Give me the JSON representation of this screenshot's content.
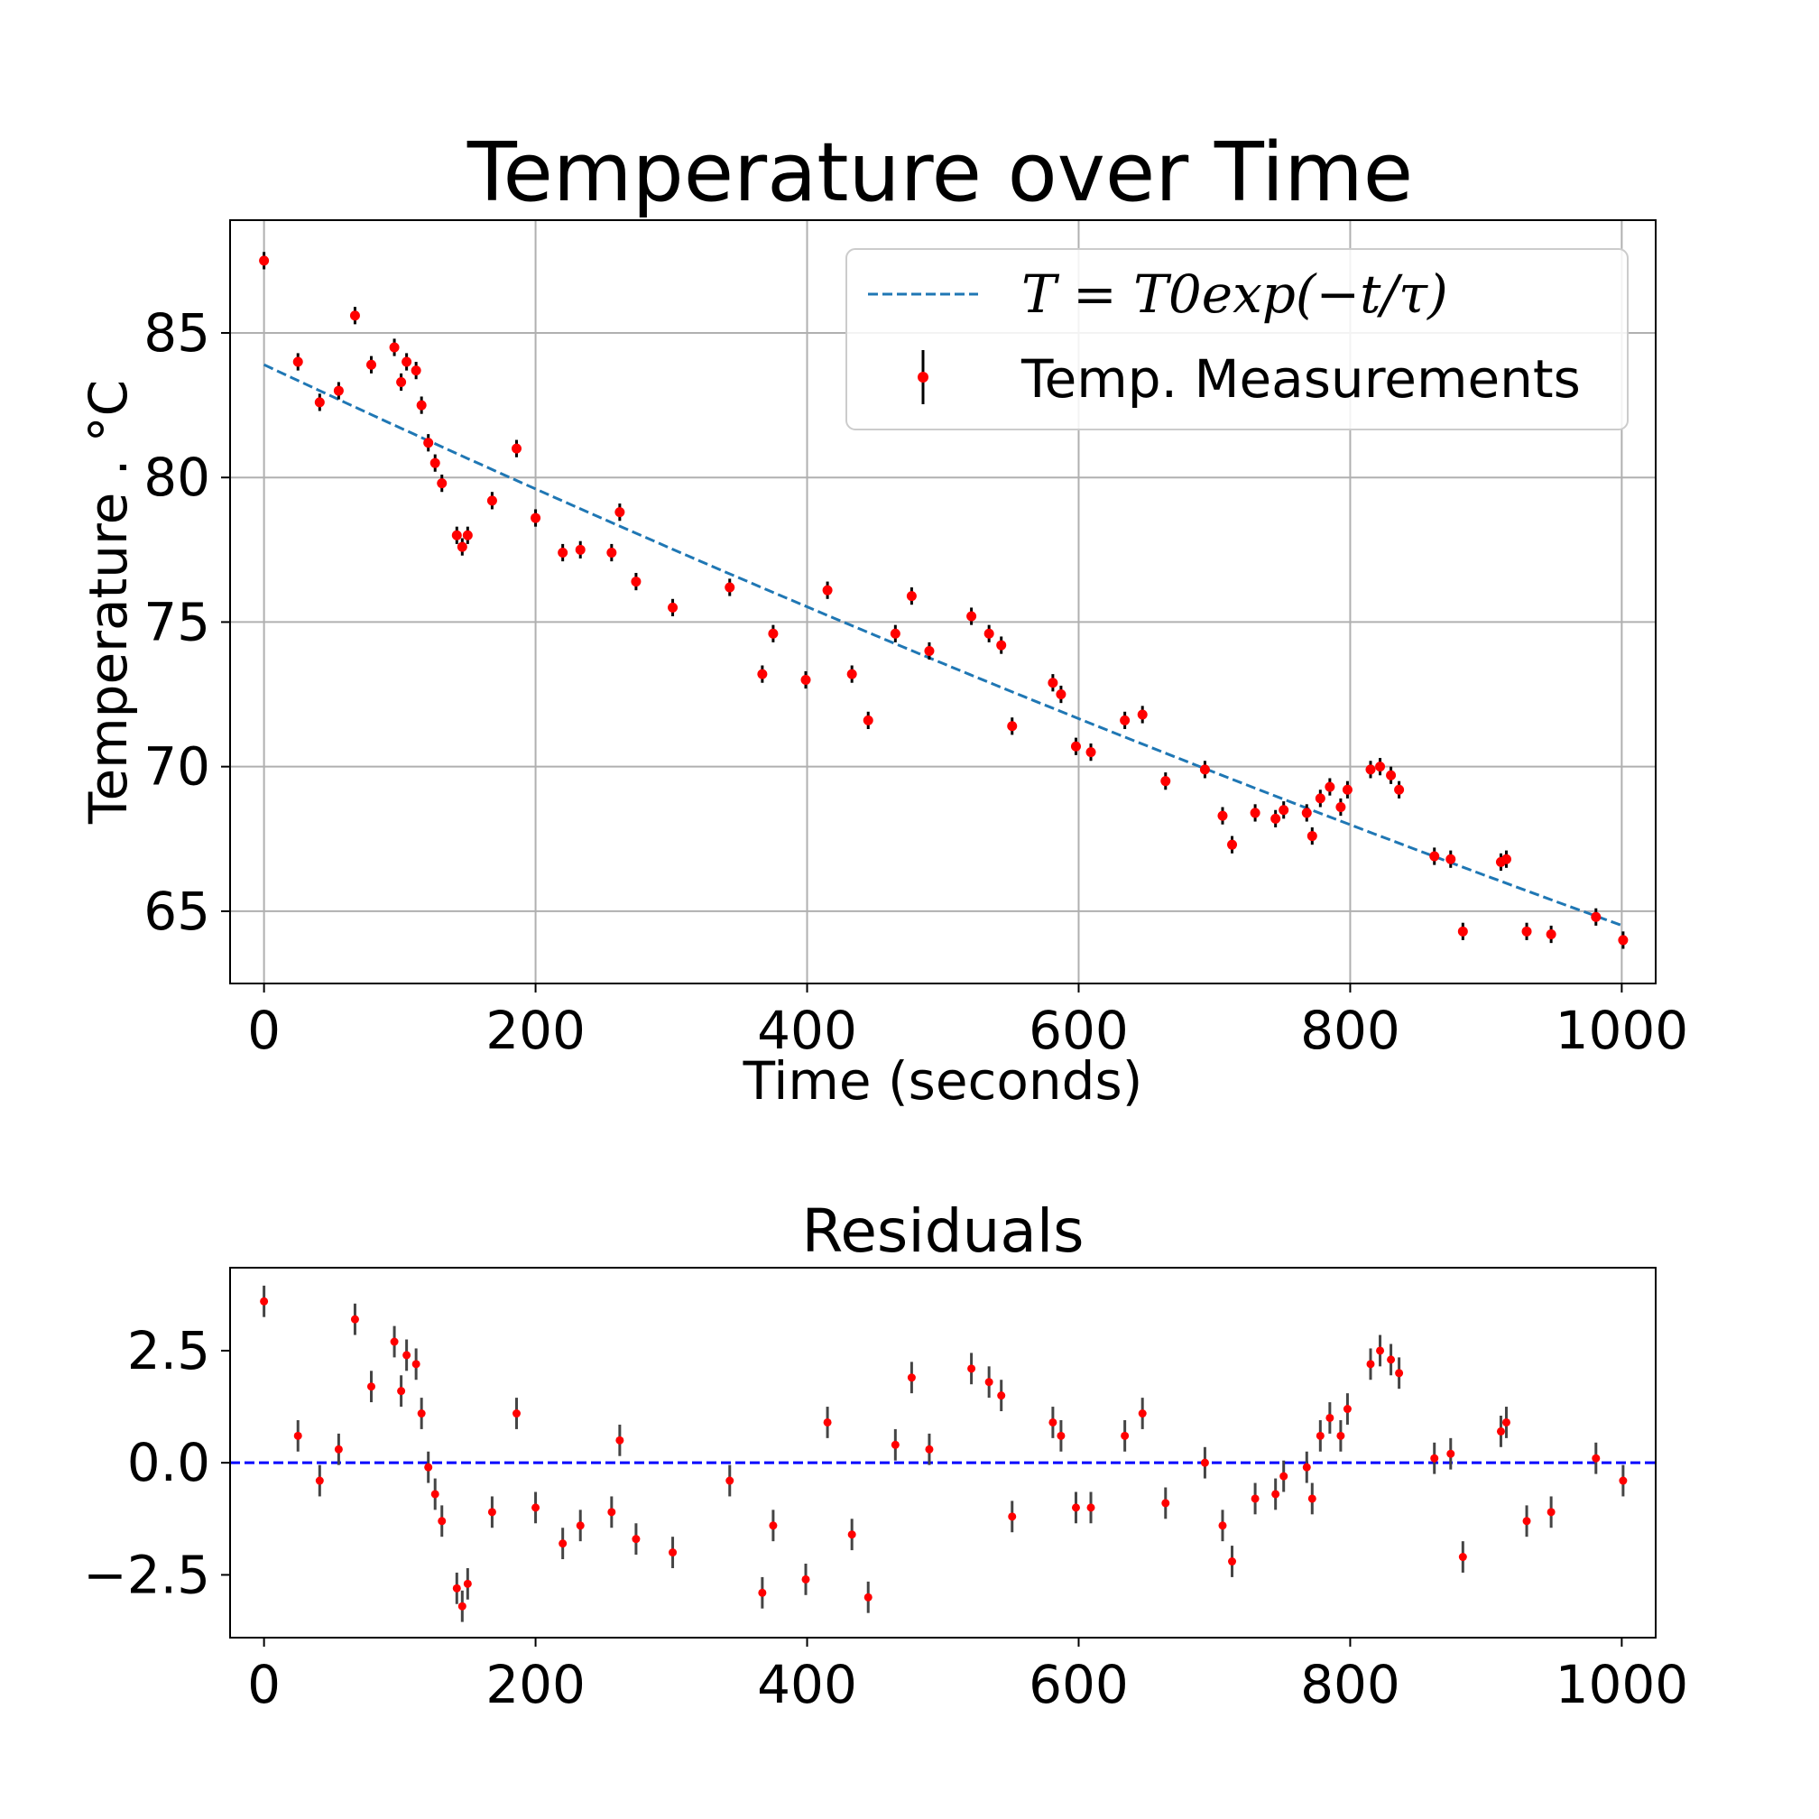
{
  "chart_data": [
    {
      "type": "scatter",
      "title": "Temperature over Time",
      "xlabel": "Time (seconds)",
      "ylabel": "Temperature . °C",
      "xlim": [
        -25,
        1025
      ],
      "ylim": [
        62.5,
        88.9
      ],
      "xticks": [
        0,
        200,
        400,
        600,
        800,
        1000
      ],
      "yticks": [
        65,
        70,
        75,
        80,
        85
      ],
      "grid": true,
      "legend_position": "top-right",
      "legend": [
        {
          "label": "T = T0exp(−t/τ)",
          "style": "dashed-line",
          "color": "#1f77b4"
        },
        {
          "label": "Temp. Measurements",
          "style": "errorbar-point",
          "color": "#ff0000"
        }
      ],
      "fit": {
        "name": "T = T0exp(−t/τ)",
        "T0": 83.9,
        "tau": 3805,
        "x_range": [
          0,
          1000
        ],
        "color": "#1f77b4"
      },
      "series": [
        {
          "name": "Temp. Measurements",
          "color": "#ff0000",
          "error": 0.3,
          "x": [
            0,
            25,
            41,
            55,
            67,
            79,
            96,
            101,
            105,
            112,
            116,
            121,
            126,
            131,
            142,
            146,
            150,
            168,
            186,
            200,
            220,
            233,
            256,
            262,
            274,
            301,
            343,
            367,
            375,
            399,
            415,
            433,
            445,
            465,
            477,
            490,
            521,
            534,
            543,
            551,
            581,
            587,
            598,
            609,
            634,
            647,
            664,
            693,
            706,
            713,
            730,
            745,
            751,
            768,
            772,
            778,
            785,
            793,
            798,
            815,
            822,
            830,
            836,
            862,
            874,
            883,
            911,
            915,
            930,
            948,
            981,
            1001
          ],
          "y": [
            87.5,
            84.0,
            82.6,
            83.0,
            85.6,
            83.9,
            84.5,
            83.3,
            84.0,
            83.7,
            82.5,
            81.2,
            80.5,
            79.8,
            78.0,
            77.6,
            78.0,
            79.2,
            81.0,
            78.6,
            77.4,
            77.5,
            77.4,
            78.8,
            76.4,
            75.5,
            76.2,
            73.2,
            74.6,
            73.0,
            76.1,
            73.2,
            71.6,
            74.6,
            75.9,
            74.0,
            75.2,
            74.6,
            74.2,
            71.4,
            72.9,
            72.5,
            70.7,
            70.5,
            71.6,
            71.8,
            69.5,
            69.9,
            68.3,
            67.3,
            68.4,
            68.2,
            68.5,
            68.4,
            67.6,
            68.9,
            69.3,
            68.6,
            69.2,
            69.9,
            70.0,
            69.7,
            69.2,
            66.9,
            66.8,
            64.3,
            66.7,
            66.8,
            64.3,
            64.2,
            64.8,
            64.0
          ]
        }
      ]
    },
    {
      "type": "scatter",
      "title": "Residuals",
      "xlabel": "",
      "ylabel": "",
      "xlim": [
        -25,
        1025
      ],
      "ylim": [
        -3.9,
        4.35
      ],
      "xticks": [
        0,
        200,
        400,
        600,
        800,
        1000
      ],
      "yticks": [
        -2.5,
        0.0,
        2.5
      ],
      "ytick_labels": [
        "−2.5",
        "0.0",
        "2.5"
      ],
      "grid": false,
      "reference_line": {
        "y": 0,
        "style": "dashed",
        "color": "#0000ff"
      },
      "series": [
        {
          "name": "",
          "color": "#ff0000",
          "error": 0.35,
          "x": [
            0,
            25,
            41,
            55,
            67,
            79,
            96,
            101,
            105,
            112,
            116,
            121,
            126,
            131,
            142,
            146,
            150,
            168,
            186,
            200,
            220,
            233,
            256,
            262,
            274,
            301,
            343,
            367,
            375,
            399,
            415,
            433,
            445,
            465,
            477,
            490,
            521,
            534,
            543,
            551,
            581,
            587,
            598,
            609,
            634,
            647,
            664,
            693,
            706,
            713,
            730,
            745,
            751,
            768,
            772,
            778,
            785,
            793,
            798,
            815,
            822,
            830,
            836,
            862,
            874,
            883,
            911,
            915,
            930,
            948,
            981,
            1001
          ],
          "y": [
            3.6,
            0.6,
            -0.4,
            0.3,
            3.2,
            1.7,
            2.7,
            1.6,
            2.4,
            2.2,
            1.1,
            -0.1,
            -0.7,
            -1.3,
            -2.8,
            -3.2,
            -2.7,
            -1.1,
            1.1,
            -1.0,
            -1.8,
            -1.4,
            -1.1,
            0.5,
            -1.7,
            -2.0,
            -0.4,
            -2.9,
            -1.4,
            -2.6,
            0.9,
            -1.6,
            -3.0,
            0.4,
            1.9,
            0.3,
            2.1,
            1.8,
            1.5,
            -1.2,
            0.9,
            0.6,
            -1.0,
            -1.0,
            0.6,
            1.1,
            -0.9,
            0.0,
            -1.4,
            -2.2,
            -0.8,
            -0.7,
            -0.3,
            -0.1,
            -0.8,
            0.6,
            1.0,
            0.6,
            1.2,
            2.2,
            2.5,
            2.3,
            2.0,
            0.1,
            0.2,
            -2.1,
            0.7,
            0.9,
            -1.3,
            -1.1,
            0.1,
            -0.4
          ]
        }
      ]
    }
  ]
}
